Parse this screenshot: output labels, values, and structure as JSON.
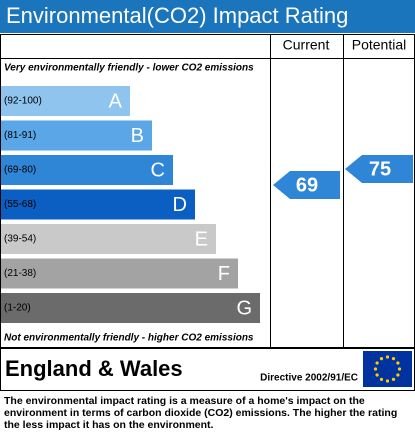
{
  "title": "Environmental(CO2) Impact Rating",
  "columns": [
    "Current",
    "Potential"
  ],
  "top_note": "Very environmentally friendly - lower CO2 emissions",
  "bottom_note": "Not environmentally friendly - higher CO2 emissions",
  "bands": [
    {
      "range": "(92-100)",
      "letter": "A",
      "color": "#8ec4ee"
    },
    {
      "range": "(81-91)",
      "letter": "B",
      "color": "#5aa6e6"
    },
    {
      "range": "(69-80)",
      "letter": "C",
      "color": "#2f86d6"
    },
    {
      "range": "(55-68)",
      "letter": "D",
      "color": "#0b5fc2"
    },
    {
      "range": "(39-54)",
      "letter": "E",
      "color": "#c9c9c9"
    },
    {
      "range": "(21-38)",
      "letter": "F",
      "color": "#a3a3a3"
    },
    {
      "range": "(1-20)",
      "letter": "G",
      "color": "#6b6b6b"
    }
  ],
  "current": 69,
  "potential": 75,
  "region": "England & Wales",
  "directive": "Directive 2002/91/EC",
  "description": "The environmental impact rating is a measure of a home's impact on the environment in terms of carbon dioxide (CO2) emissions. The higher the rating the less impact it has on the environment."
}
